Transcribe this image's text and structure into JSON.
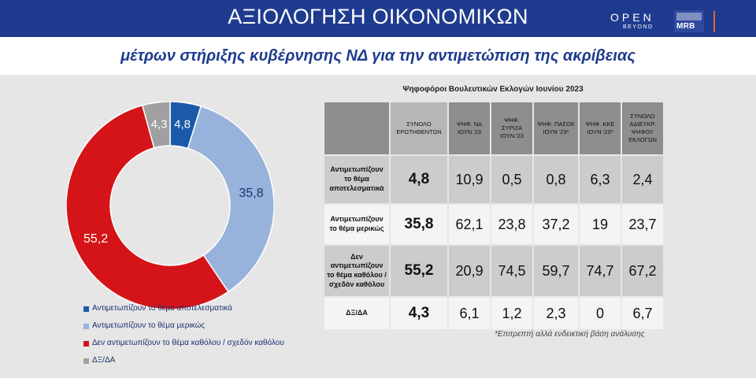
{
  "header": {
    "title": "ΑΞΙΟΛΟΓΗΣΗ ΟΙΚΟΝΟΜΙΚΩΝ",
    "logo_open": "OPEN",
    "logo_beyond": "BEYOND",
    "logo_mrb": "MRB",
    "subtitle": "μέτρων στήριξης κυβέρνησης ΝΔ για την αντιμετώπιση της ακρίβειας"
  },
  "colors": {
    "header_bg": "#1e3b8f",
    "effective": "#1b5aa8",
    "partial": "#97b3dc",
    "not": "#d41418",
    "dk": "#a0a0a0"
  },
  "chart_data": [
    {
      "type": "pie",
      "donut": true,
      "categories": [
        "Αντιμετωπίζουν το θέμα αποτελεσματικά",
        "Αντιμετωπίζουν το θέμα μερικώς",
        "Δεν αντιμετωπίζουν το θέμα καθόλου / σχεδόν καθόλου",
        "ΔΞ/ΔΑ"
      ],
      "values": [
        4.8,
        35.8,
        55.2,
        4.3
      ],
      "value_labels": [
        "4,8",
        "35,8",
        "55,2",
        "4,3"
      ],
      "legend_position": "bottom-left"
    },
    {
      "type": "table",
      "caption": "Ψηφοφόροι Βουλευτικών Εκλογών Ιουνίου 2023",
      "columns": [
        "ΣΥΝΟΛΟ ΕΡΩΤΗΘΕΝΤΩΝ",
        "ΨΗΦ. ΝΔ ΙΟΥΝ.'23",
        "ΨΗΦ. ΣΥΡΙΖΑ ΙΟΥΝ.'23",
        "ΨΗΦ. ΠΑΣΟΚ ΙΟΥΝ '23*",
        "ΨΗΦ. ΚΚΕ ΙΟΥΝ '23*",
        "ΣΥΝΟΛΟ ΑΔΙΕΥΚΡ. ΨΗΦΟΥ ΕΚΛΟΓΩΝ"
      ],
      "rows": [
        {
          "label": "Αντιμετωπίζουν το θέμα αποτελεσματικά",
          "values": [
            "4,8",
            "10,9",
            "0,5",
            "0,8",
            "6,3",
            "2,4"
          ]
        },
        {
          "label": "Αντιμετωπίζουν το θέμα μερικώς",
          "values": [
            "35,8",
            "62,1",
            "23,8",
            "37,2",
            "19",
            "23,7"
          ]
        },
        {
          "label": "Δεν αντιμετωπίζουν το θέμα καθόλου / σχεδόν καθόλου",
          "values": [
            "55,2",
            "20,9",
            "74,5",
            "59,7",
            "74,7",
            "67,2"
          ]
        },
        {
          "label": "ΔΞ/ΔΑ",
          "values": [
            "4,3",
            "6,1",
            "1,2",
            "2,3",
            "0",
            "6,7"
          ]
        }
      ],
      "footnote": "*Επιτρεπτή αλλά ενδεικτική βάση ανάλυσης"
    }
  ]
}
